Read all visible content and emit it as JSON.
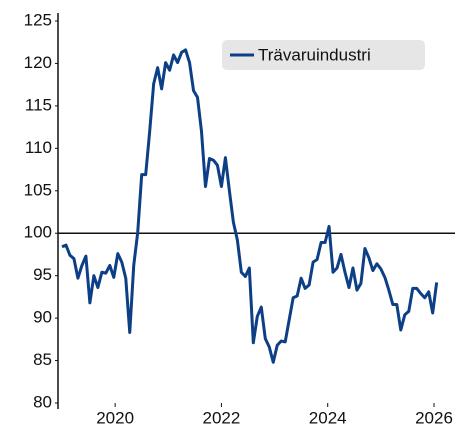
{
  "chart_data": {
    "type": "line",
    "x": [
      2019.0,
      2019.075,
      2019.15,
      2019.225,
      2019.3,
      2019.375,
      2019.45,
      2019.525,
      2019.6,
      2019.675,
      2019.75,
      2019.825,
      2019.9,
      2019.975,
      2020.05,
      2020.125,
      2020.2,
      2020.275,
      2020.35,
      2020.425,
      2020.5,
      2020.575,
      2020.65,
      2020.725,
      2020.8,
      2020.875,
      2020.95,
      2021.025,
      2021.1,
      2021.175,
      2021.25,
      2021.325,
      2021.4,
      2021.475,
      2021.55,
      2021.625,
      2021.7,
      2021.775,
      2021.85,
      2021.925,
      2022.0,
      2022.075,
      2022.15,
      2022.225,
      2022.3,
      2022.375,
      2022.45,
      2022.525,
      2022.6,
      2022.675,
      2022.75,
      2022.825,
      2022.9,
      2022.975,
      2023.05,
      2023.125,
      2023.2,
      2023.275,
      2023.35,
      2023.425,
      2023.5,
      2023.575,
      2023.65,
      2023.725,
      2023.8,
      2023.875,
      2023.95,
      2024.025,
      2024.1,
      2024.175,
      2024.25,
      2024.325,
      2024.4,
      2024.475,
      2024.55,
      2024.625,
      2024.7,
      2024.775,
      2024.85,
      2024.925,
      2025.0,
      2025.075,
      2025.15,
      2025.225,
      2025.3,
      2025.375,
      2025.45,
      2025.525,
      2025.6,
      2025.675,
      2025.75,
      2025.825,
      2025.9,
      2025.975,
      2026.05
    ],
    "series": [
      {
        "name": "Trävaruindustri",
        "color": "#0d3f86",
        "values": [
          98.4,
          98.6,
          97.4,
          97,
          94.7,
          96.2,
          97.3,
          91.8,
          95,
          93.6,
          95.4,
          95.3,
          96.2,
          94.8,
          97.6,
          96.6,
          94.7,
          88.3,
          96.2,
          100.1,
          106.9,
          106.9,
          112,
          117.6,
          119.5,
          117,
          120.1,
          119.2,
          121,
          120.1,
          121.3,
          121.6,
          120.1,
          116.8,
          116,
          112,
          105.5,
          108.8,
          108.6,
          108,
          105.5,
          108.9,
          105,
          101.3,
          99.2,
          95.4,
          94.9,
          95.9,
          87.1,
          90.2,
          91.3,
          87.6,
          86.6,
          84.8,
          86.8,
          87.3,
          87.2,
          89.8,
          92.4,
          92.6,
          94.7,
          93.5,
          93.9,
          96.6,
          96.9,
          98.9,
          98.9,
          100.8,
          95.4,
          95.9,
          97.5,
          95.4,
          93.6,
          95.9,
          93.3,
          94.1,
          98.2,
          97.1,
          95.6,
          96.4,
          95.8,
          94.8,
          93.3,
          91.6,
          91.6,
          88.6,
          90.4,
          90.8,
          93.5,
          93.5,
          92.9,
          92.4,
          93.1,
          90.6,
          94.2
        ]
      }
    ],
    "xlim": [
      2018.925,
      2026.395
    ],
    "xticks": [
      2020,
      2022,
      2024,
      2026
    ],
    "ylim": [
      80,
      125
    ],
    "yticks": [
      80,
      85,
      90,
      95,
      100,
      105,
      110,
      115,
      120,
      125
    ],
    "reference_line": 100,
    "grid": false,
    "legend": "upper right"
  }
}
